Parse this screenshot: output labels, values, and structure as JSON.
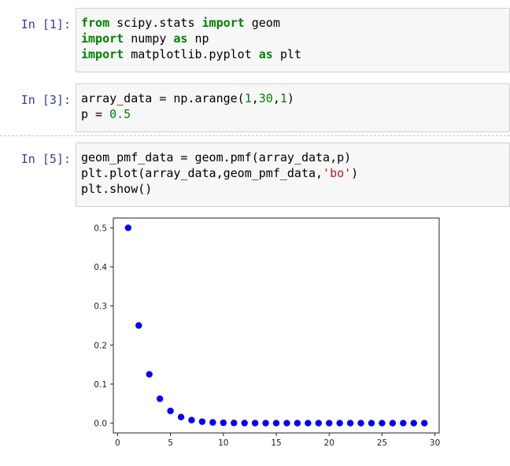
{
  "cells": [
    {
      "prompt": "In [1]:",
      "lines": [
        [
          {
            "t": "from",
            "c": "kw"
          },
          {
            "t": " scipy.stats ",
            "c": ""
          },
          {
            "t": "import",
            "c": "kw"
          },
          {
            "t": " geom",
            "c": ""
          }
        ],
        [
          {
            "t": "import",
            "c": "kw"
          },
          {
            "t": " numpy ",
            "c": ""
          },
          {
            "t": "as",
            "c": "kw"
          },
          {
            "t": " np",
            "c": ""
          }
        ],
        [
          {
            "t": "import",
            "c": "kw"
          },
          {
            "t": " matplotlib.pyplot ",
            "c": ""
          },
          {
            "t": "as",
            "c": "kw"
          },
          {
            "t": " plt",
            "c": ""
          }
        ]
      ]
    },
    {
      "prompt": "In [3]:",
      "lines": [
        [
          {
            "t": "array_data = np.arange(",
            "c": ""
          },
          {
            "t": "1",
            "c": "num"
          },
          {
            "t": ",",
            "c": ""
          },
          {
            "t": "30",
            "c": "num"
          },
          {
            "t": ",",
            "c": ""
          },
          {
            "t": "1",
            "c": "num"
          },
          {
            "t": ")",
            "c": ""
          }
        ],
        [
          {
            "t": "p = ",
            "c": ""
          },
          {
            "t": "0.5",
            "c": "num"
          }
        ]
      ]
    },
    {
      "prompt": "In [5]:",
      "lines": [
        [
          {
            "t": "geom_pmf_data = geom.pmf(array_data,p)",
            "c": ""
          }
        ],
        [
          {
            "t": "plt.plot(array_data,geom_pmf_data,",
            "c": ""
          },
          {
            "t": "'bo'",
            "c": "str"
          },
          {
            "t": ")",
            "c": ""
          }
        ],
        [
          {
            "t": "plt.show()",
            "c": ""
          }
        ]
      ]
    }
  ],
  "chart_data": {
    "type": "scatter",
    "title": "",
    "xlabel": "",
    "ylabel": "",
    "marker_color": "#0000ff",
    "xlim": [
      -0.4,
      30.4
    ],
    "ylim": [
      -0.025,
      0.525
    ],
    "xticks": [
      0,
      5,
      10,
      15,
      20,
      25,
      30
    ],
    "yticks": [
      0.0,
      0.1,
      0.2,
      0.3,
      0.4,
      0.5
    ],
    "ytick_labels": [
      "0.0",
      "0.1",
      "0.2",
      "0.3",
      "0.4",
      "0.5"
    ],
    "x": [
      1,
      2,
      3,
      4,
      5,
      6,
      7,
      8,
      9,
      10,
      11,
      12,
      13,
      14,
      15,
      16,
      17,
      18,
      19,
      20,
      21,
      22,
      23,
      24,
      25,
      26,
      27,
      28,
      29
    ],
    "y": [
      0.5,
      0.25,
      0.125,
      0.0625,
      0.03125,
      0.015625,
      0.0078125,
      0.00390625,
      0.001953125,
      0.0009765625,
      0.00048828125,
      0.000244140625,
      0.0001220703125,
      6.103515625e-05,
      3.0517578125e-05,
      1.52587890625e-05,
      7.62939453125e-06,
      3.814697265625e-06,
      1.9073486328125e-06,
      9.5367431640625e-07,
      4.76837158203125e-07,
      2.384185791015625e-07,
      1.1920928955078125e-07,
      5.960464477539063e-08,
      2.9802322387695312e-08,
      1.4901161193847656e-08,
      7.450580596923828e-09,
      3.725290298461914e-09,
      1.862645149230957e-09
    ]
  }
}
